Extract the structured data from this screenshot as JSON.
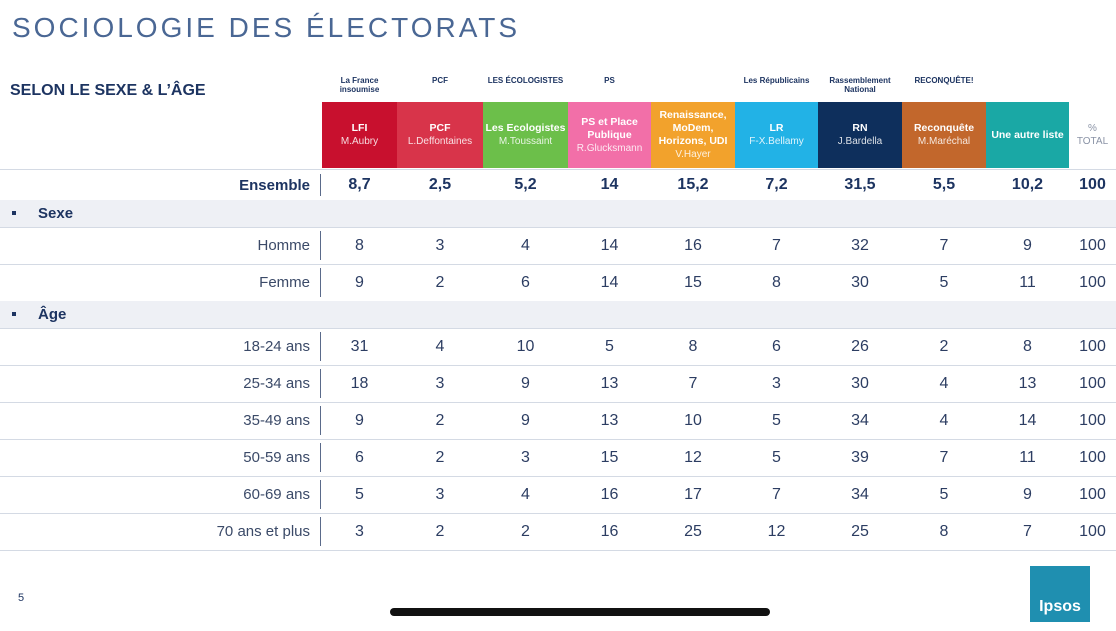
{
  "title": "SOCIOLOGIE DES ÉLECTORATS",
  "subtitle": "SELON LE SEXE & L’ÂGE",
  "table": {
    "columns": [
      {
        "logo": "La France insoumise",
        "party": "LFI",
        "candidate": "M.Aubry",
        "color": "#c8102e"
      },
      {
        "logo": "PCF",
        "party": "PCF",
        "candidate": "L.Deffontaines",
        "color": "#d8344a"
      },
      {
        "logo": "LES ÉCOLOGISTES",
        "party": "Les Ecologistes",
        "candidate": "M.Toussaint",
        "color": "#6cbf4a"
      },
      {
        "logo": "PS",
        "party": "PS et Place Publique",
        "candidate": "R.Glucksmann",
        "color": "#f26fa8"
      },
      {
        "party": "Renaissance, MoDem, Horizons, UDI",
        "candidate": "V.Hayer",
        "color": "#f2a22c"
      },
      {
        "logo": "Les Républicains",
        "party": "LR",
        "candidate": "F-X.Bellamy",
        "color": "#22b2e6"
      },
      {
        "logo": "Rassemblement National",
        "party": "RN",
        "candidate": "J.Bardella",
        "color": "#0e2f5c"
      },
      {
        "logo": "RECONQUÊTE!",
        "party": "Reconquête",
        "candidate": "M.Maréchal",
        "color": "#c2672c"
      },
      {
        "party": "Une autre liste",
        "color": "#1aa8a5"
      }
    ],
    "total_header": [
      "%",
      "TOTAL"
    ],
    "rows": [
      {
        "label": "Ensemble",
        "values": [
          "8,7",
          "2,5",
          "5,2",
          14,
          "15,2",
          "7,2",
          "31,5",
          "5,5",
          "10,2",
          100
        ]
      },
      {
        "section": "Sexe"
      },
      {
        "label": "Homme",
        "values": [
          8,
          3,
          4,
          14,
          16,
          7,
          32,
          7,
          9,
          100
        ]
      },
      {
        "label": "Femme",
        "values": [
          9,
          2,
          6,
          14,
          15,
          8,
          30,
          5,
          11,
          100
        ]
      },
      {
        "section": "Âge"
      },
      {
        "label": "18-24 ans",
        "values": [
          31,
          4,
          10,
          5,
          8,
          6,
          26,
          2,
          8,
          100
        ]
      },
      {
        "label": "25-34 ans",
        "values": [
          18,
          3,
          9,
          13,
          7,
          3,
          30,
          4,
          13,
          100
        ]
      },
      {
        "label": "35-49 ans",
        "values": [
          9,
          2,
          9,
          13,
          10,
          5,
          34,
          4,
          14,
          100
        ]
      },
      {
        "label": "50-59 ans",
        "values": [
          6,
          2,
          3,
          15,
          12,
          5,
          39,
          7,
          11,
          100
        ]
      },
      {
        "label": "60-69 ans",
        "values": [
          5,
          3,
          4,
          16,
          17,
          7,
          34,
          5,
          9,
          100
        ]
      },
      {
        "label": "70 ans et plus",
        "values": [
          3,
          2,
          2,
          16,
          25,
          12,
          25,
          8,
          7,
          100
        ]
      }
    ]
  },
  "page_number": "5",
  "brand": "Ipsos"
}
